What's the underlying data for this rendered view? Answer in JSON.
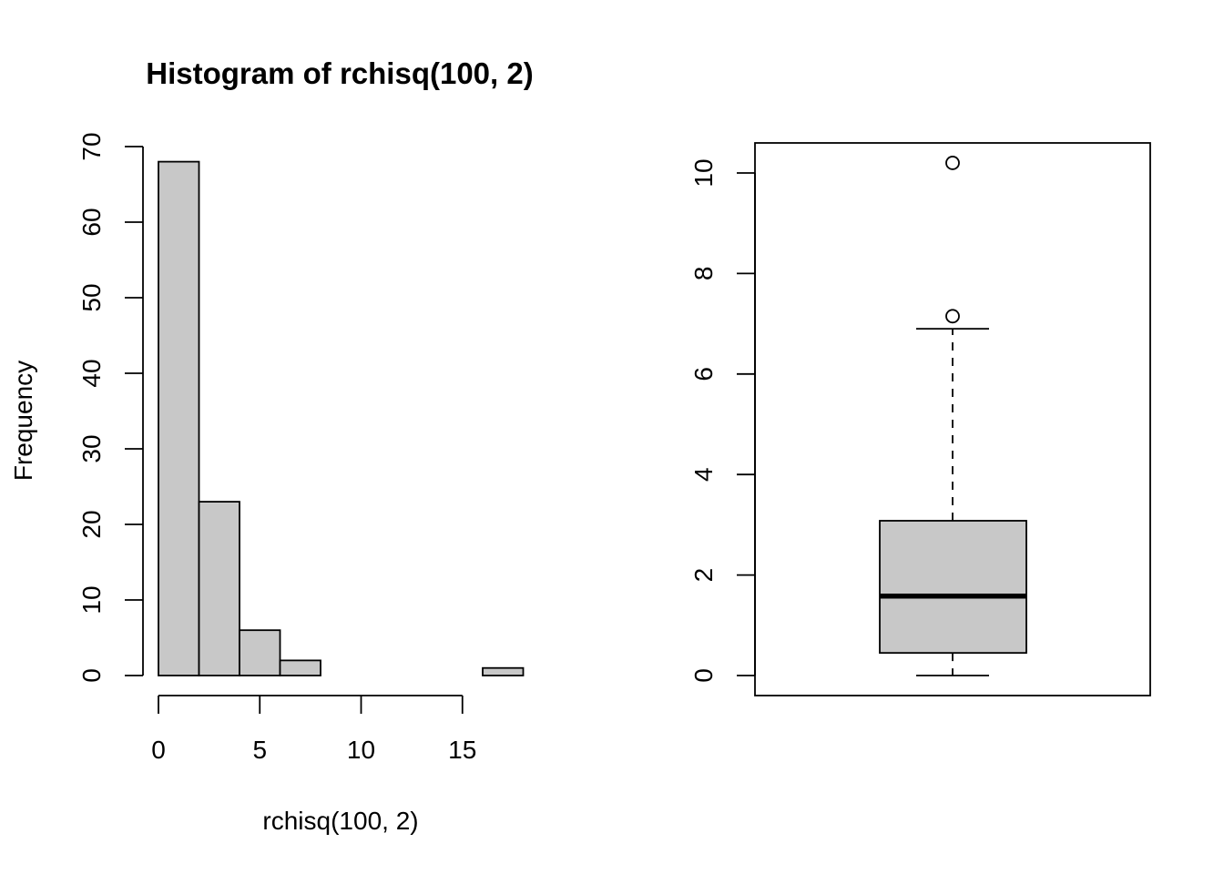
{
  "chart_data": [
    {
      "type": "bar",
      "subtype": "histogram",
      "title": "Histogram of rchisq(100, 2)",
      "xlabel": "rchisq(100, 2)",
      "ylabel": "Frequency",
      "bins": [
        {
          "x0": 0,
          "x1": 2,
          "count": 68
        },
        {
          "x0": 2,
          "x1": 4,
          "count": 23
        },
        {
          "x0": 4,
          "x1": 6,
          "count": 6
        },
        {
          "x0": 6,
          "x1": 8,
          "count": 2
        },
        {
          "x0": 8,
          "x1": 10,
          "count": 0
        },
        {
          "x0": 10,
          "x1": 12,
          "count": 0
        },
        {
          "x0": 12,
          "x1": 14,
          "count": 0
        },
        {
          "x0": 14,
          "x1": 16,
          "count": 0
        },
        {
          "x0": 16,
          "x1": 18,
          "count": 1
        }
      ],
      "xlim": [
        0,
        18
      ],
      "ylim": [
        0,
        70
      ],
      "xticks": [
        0,
        5,
        10,
        15
      ],
      "yticks": [
        0,
        10,
        20,
        30,
        40,
        50,
        60,
        70
      ],
      "bar_color": "#c8c8c8",
      "grid": false
    },
    {
      "type": "boxplot",
      "title": "",
      "xlabel": "",
      "ylabel": "",
      "min": 0.0,
      "q1": 0.45,
      "median": 1.58,
      "q3": 3.08,
      "upper_whisker": 6.9,
      "outliers": [
        7.15,
        10.2
      ],
      "ylim": [
        0,
        10.6
      ],
      "yticks": [
        0,
        2,
        4,
        6,
        8,
        10
      ],
      "box_color": "#c8c8c8",
      "grid": false
    }
  ]
}
